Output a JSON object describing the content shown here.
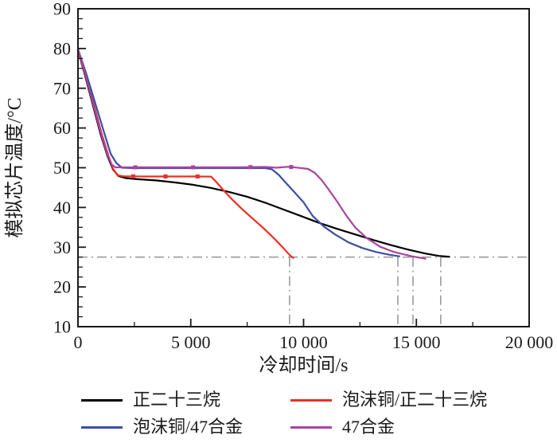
{
  "chart_data": {
    "type": "line",
    "title": "",
    "xlabel": "冷却时间/s",
    "ylabel": "模拟芯片温度/°C",
    "xlim": [
      0,
      20000
    ],
    "ylim": [
      10,
      90
    ],
    "x_major_ticks": [
      0,
      5000,
      10000,
      15000,
      20000
    ],
    "x_tick_labels": [
      "0",
      "5 000",
      "10 000",
      "15 000",
      "20 000"
    ],
    "x_minor_step": 2500,
    "y_major_step": 10,
    "y_minor_step": 2.5,
    "y_tick_labels": [
      "10",
      "20",
      "30",
      "40",
      "50",
      "60",
      "70",
      "80",
      "90"
    ],
    "grid": false,
    "legend_position": "below",
    "frame_color": "#1a1a1a",
    "reference_lines": {
      "style": "dash-dot",
      "color": "#9b9b9b",
      "horizontal_temp": 27.5,
      "vertical_times": [
        9380,
        14180,
        14850,
        16080
      ]
    },
    "series": [
      {
        "id": "n-tricosane",
        "name": "正二十三烷",
        "color": "#000000",
        "points": [
          [
            0,
            79.5
          ],
          [
            300,
            73.5
          ],
          [
            650,
            66
          ],
          [
            1000,
            58.5
          ],
          [
            1300,
            53
          ],
          [
            1550,
            49.6
          ],
          [
            1800,
            47.9
          ],
          [
            2100,
            47.4
          ],
          [
            2700,
            47.1
          ],
          [
            3500,
            46.8
          ],
          [
            4300,
            46.3
          ],
          [
            5100,
            45.7
          ],
          [
            5900,
            44.9
          ],
          [
            6700,
            43.9
          ],
          [
            7500,
            42.7
          ],
          [
            8300,
            41.2
          ],
          [
            9100,
            39.5
          ],
          [
            9900,
            37.8
          ],
          [
            10700,
            36.1
          ],
          [
            11500,
            34.6
          ],
          [
            12300,
            33.2
          ],
          [
            13100,
            31.8
          ],
          [
            13900,
            30.5
          ],
          [
            14700,
            29.3
          ],
          [
            15400,
            28.4
          ],
          [
            16000,
            27.8
          ],
          [
            16450,
            27.6
          ]
        ]
      },
      {
        "id": "copper-foam-n-tricosane",
        "name": "泡沫铜/正二十三烷",
        "color": "#ed2e24",
        "marker_times": [
          2450,
          3880,
          5300
        ],
        "points": [
          [
            0,
            79.6
          ],
          [
            320,
            73.5
          ],
          [
            700,
            66
          ],
          [
            1050,
            58.5
          ],
          [
            1350,
            53
          ],
          [
            1550,
            49.8
          ],
          [
            1750,
            48.1
          ],
          [
            2000,
            47.85
          ],
          [
            2800,
            47.8
          ],
          [
            3600,
            47.8
          ],
          [
            4400,
            47.8
          ],
          [
            5200,
            47.8
          ],
          [
            5900,
            47.75
          ],
          [
            6150,
            46.3
          ],
          [
            6450,
            44.3
          ],
          [
            6800,
            42.2
          ],
          [
            7200,
            40.0
          ],
          [
            7700,
            37.4
          ],
          [
            8200,
            34.9
          ],
          [
            8700,
            32.2
          ],
          [
            9100,
            29.8
          ],
          [
            9400,
            27.9
          ],
          [
            9550,
            27.3
          ]
        ]
      },
      {
        "id": "copper-foam-47-alloy",
        "name": "泡沫铜/47合金",
        "color": "#3c4fa3",
        "points": [
          [
            0,
            79.8
          ],
          [
            350,
            74
          ],
          [
            750,
            66.5
          ],
          [
            1150,
            59
          ],
          [
            1450,
            53.5
          ],
          [
            1700,
            51.2
          ],
          [
            1950,
            50.0
          ],
          [
            2500,
            49.9
          ],
          [
            3500,
            49.9
          ],
          [
            4500,
            49.9
          ],
          [
            5500,
            49.9
          ],
          [
            6500,
            49.9
          ],
          [
            7500,
            49.9
          ],
          [
            8300,
            49.9
          ],
          [
            8600,
            49.6
          ],
          [
            8900,
            48.2
          ],
          [
            9200,
            46.3
          ],
          [
            9600,
            43.8
          ],
          [
            10000,
            41.3
          ],
          [
            10400,
            37.9
          ],
          [
            10900,
            35.2
          ],
          [
            11400,
            33.2
          ],
          [
            12000,
            31.2
          ],
          [
            12600,
            29.8
          ],
          [
            13200,
            28.8
          ],
          [
            13800,
            28.1
          ],
          [
            14250,
            27.7
          ]
        ]
      },
      {
        "id": "47-alloy",
        "name": "47合金",
        "color": "#a9449f",
        "marker_times": [
          2540,
          5100,
          7650,
          9450
        ],
        "points": [
          [
            0,
            80
          ],
          [
            300,
            74
          ],
          [
            650,
            66.5
          ],
          [
            1000,
            59
          ],
          [
            1300,
            53.3
          ],
          [
            1500,
            50.8
          ],
          [
            1650,
            50.1
          ],
          [
            2500,
            50.1
          ],
          [
            4000,
            50.1
          ],
          [
            5500,
            50.1
          ],
          [
            7000,
            50.1
          ],
          [
            8300,
            50.2
          ],
          [
            8800,
            50.0
          ],
          [
            9300,
            50.25
          ],
          [
            9700,
            50.05
          ],
          [
            10200,
            49.7
          ],
          [
            10500,
            48.7
          ],
          [
            10800,
            46.9
          ],
          [
            11100,
            44.6
          ],
          [
            11500,
            41.4
          ],
          [
            11900,
            37.9
          ],
          [
            12300,
            34.9
          ],
          [
            12800,
            32.3
          ],
          [
            13400,
            30.1
          ],
          [
            14000,
            28.8
          ],
          [
            14800,
            27.7
          ],
          [
            15400,
            27.1
          ]
        ]
      }
    ]
  },
  "legend": {
    "items": [
      {
        "label": "正二十三烷"
      },
      {
        "label": "泡沫铜/正二十三烷"
      },
      {
        "label": "泡沫铜/47合金"
      },
      {
        "label": "47合金"
      }
    ]
  }
}
